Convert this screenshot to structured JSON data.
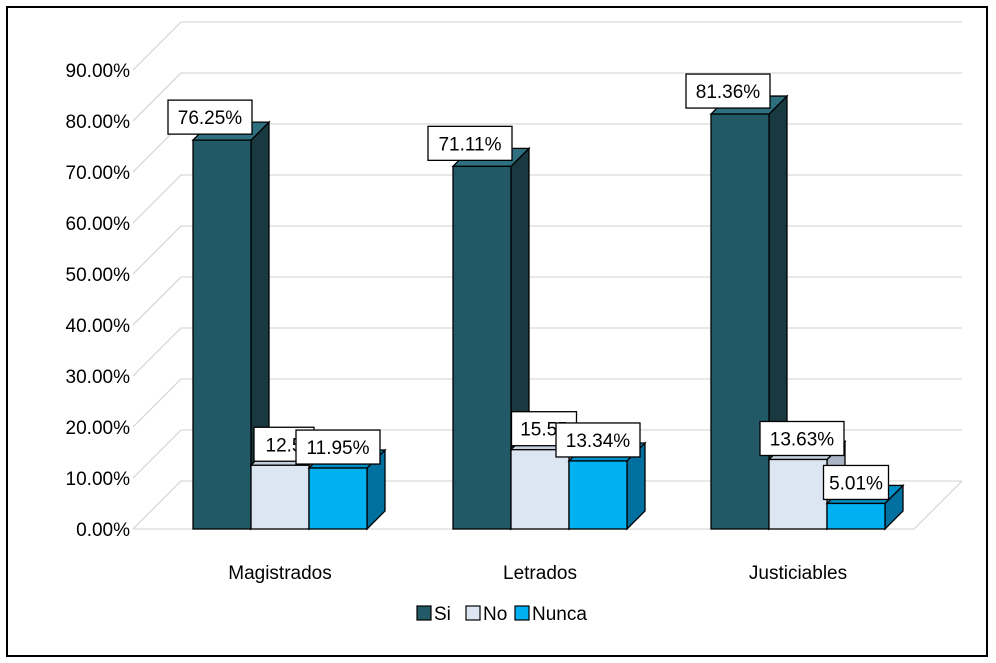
{
  "chart_data": {
    "type": "bar",
    "style": "3d-clustered-column",
    "categories": [
      "Magistrados",
      "Letrados",
      "Justiciables"
    ],
    "series": [
      {
        "name": "Si",
        "values": [
          76.25,
          71.11,
          81.36
        ],
        "labels": [
          "76.25%",
          "71.11%",
          "81.36%"
        ],
        "color": "#215967",
        "side_color": "#17393f",
        "top_color": "#2f7080"
      },
      {
        "name": "No",
        "values": [
          12.5,
          15.55,
          13.63
        ],
        "labels": [
          "12.5",
          "15.55",
          "13.63%"
        ],
        "color": "#dce6f2",
        "side_color": "#a9b5c4",
        "top_color": "#c4d0dd"
      },
      {
        "name": "Nunca",
        "values": [
          11.95,
          13.34,
          5.01
        ],
        "labels": [
          "11.95%",
          "13.34%",
          "5.01%"
        ],
        "color": "#00b0f0",
        "side_color": "#0070a0",
        "top_color": "#0090c8"
      }
    ],
    "y_ticks": [
      "0.00%",
      "10.00%",
      "20.00%",
      "30.00%",
      "40.00%",
      "50.00%",
      "60.00%",
      "70.00%",
      "80.00%",
      "90.00%"
    ],
    "ylim": [
      0,
      95
    ],
    "grid": true,
    "legend_position": "bottom",
    "gridline_color": "#d9d9d9"
  }
}
